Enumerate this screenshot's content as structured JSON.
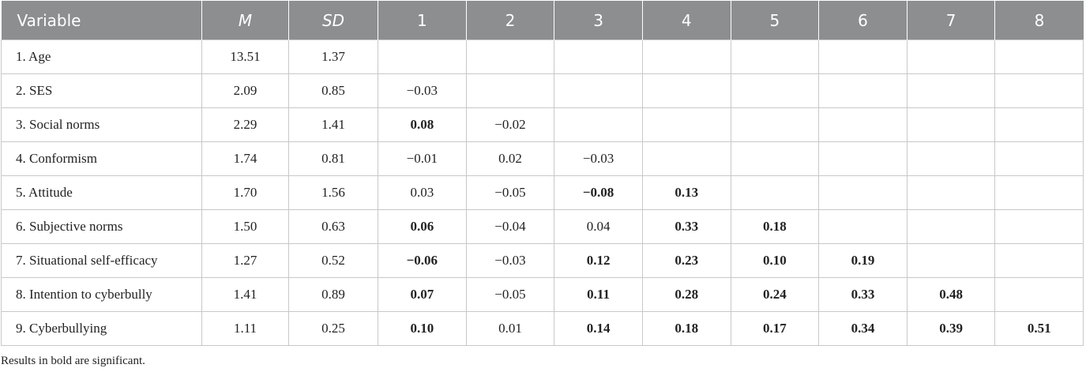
{
  "table": {
    "header": {
      "cells": [
        "Variable",
        "M",
        "SD",
        "1",
        "2",
        "3",
        "4",
        "5",
        "6",
        "7",
        "8"
      ],
      "italic": [
        1,
        2
      ]
    },
    "rows": [
      {
        "cells": [
          "1. Age",
          "13.51",
          "1.37"
        ],
        "bold": []
      },
      {
        "cells": [
          "2. SES",
          "2.09",
          "0.85",
          "−0.03"
        ],
        "bold": []
      },
      {
        "cells": [
          "3. Social norms",
          "2.29",
          "1.41",
          "0.08",
          "−0.02"
        ],
        "bold": [
          3
        ]
      },
      {
        "cells": [
          "4. Conformism",
          "1.74",
          "0.81",
          "−0.01",
          "0.02",
          "−0.03"
        ],
        "bold": []
      },
      {
        "cells": [
          "5. Attitude",
          "1.70",
          "1.56",
          "0.03",
          "−0.05",
          "−0.08",
          "0.13"
        ],
        "bold": [
          5,
          6
        ]
      },
      {
        "cells": [
          "6. Subjective norms",
          "1.50",
          "0.63",
          "0.06",
          "−0.04",
          "0.04",
          "0.33",
          "0.18"
        ],
        "bold": [
          3,
          6,
          7
        ]
      },
      {
        "cells": [
          "7. Situational self-efficacy",
          "1.27",
          "0.52",
          "−0.06",
          "−0.03",
          "0.12",
          "0.23",
          "0.10",
          "0.19"
        ],
        "bold": [
          3,
          5,
          6,
          7,
          8
        ]
      },
      {
        "cells": [
          "8. Intention to cyberbully",
          "1.41",
          "0.89",
          "0.07",
          "−0.05",
          "0.11",
          "0.28",
          "0.24",
          "0.33",
          "0.48"
        ],
        "bold": [
          3,
          5,
          6,
          7,
          8,
          9
        ]
      },
      {
        "cells": [
          "9. Cyberbullying",
          "1.11",
          "0.25",
          "0.10",
          "0.01",
          "0.14",
          "0.18",
          "0.17",
          "0.34",
          "0.39",
          "0.51"
        ],
        "bold": [
          3,
          5,
          6,
          7,
          8,
          9,
          10
        ]
      }
    ]
  },
  "footnote": "Results in bold are significant."
}
